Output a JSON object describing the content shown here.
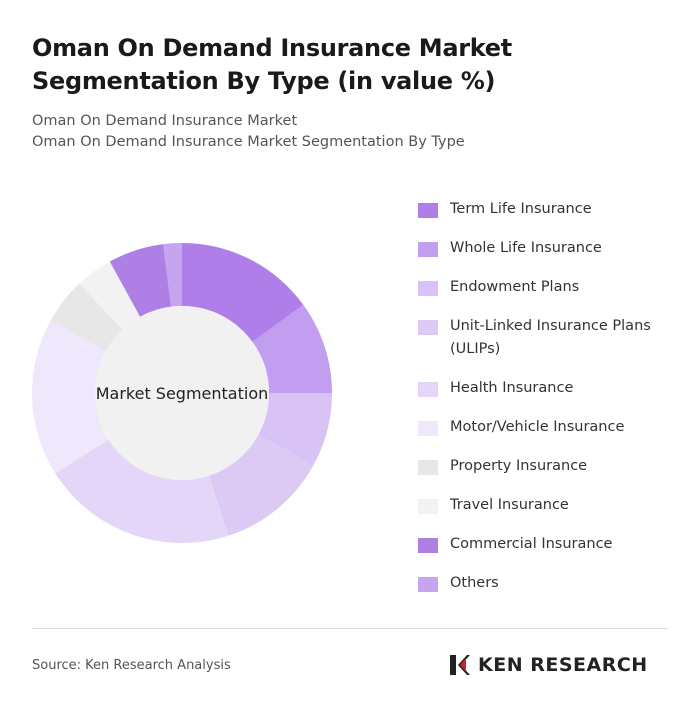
{
  "chart_data": {
    "type": "donut",
    "title": "Oman On Demand Insurance Market Segmentation By Type (in value %)",
    "subtitle": [
      "Oman On Demand Insurance Market",
      "Oman On Demand Insurance Market Segmentation By Type"
    ],
    "center_label": "Market Segmentation",
    "categories": [
      "Term Life Insurance",
      "Whole Life Insurance",
      "Endowment Plans",
      "Unit-Linked Insurance Plans (ULIPs)",
      "Health Insurance",
      "Motor/Vehicle Insurance",
      "Property Insurance",
      "Travel Insurance",
      "Commercial Insurance",
      "Others"
    ],
    "values": [
      15,
      10,
      8,
      12,
      21,
      17,
      5,
      4,
      6,
      2
    ],
    "colors": [
      "#b07ee8",
      "#c29ef0",
      "#d8c2f6",
      "#dccaf5",
      "#e4d6f8",
      "#efe7fb",
      "#e7e7e7",
      "#f2f2f2",
      "#ae80e6",
      "#c6a4f0"
    ],
    "source": "Source: Ken Research Analysis",
    "brand": "KEN RESEARCH"
  }
}
